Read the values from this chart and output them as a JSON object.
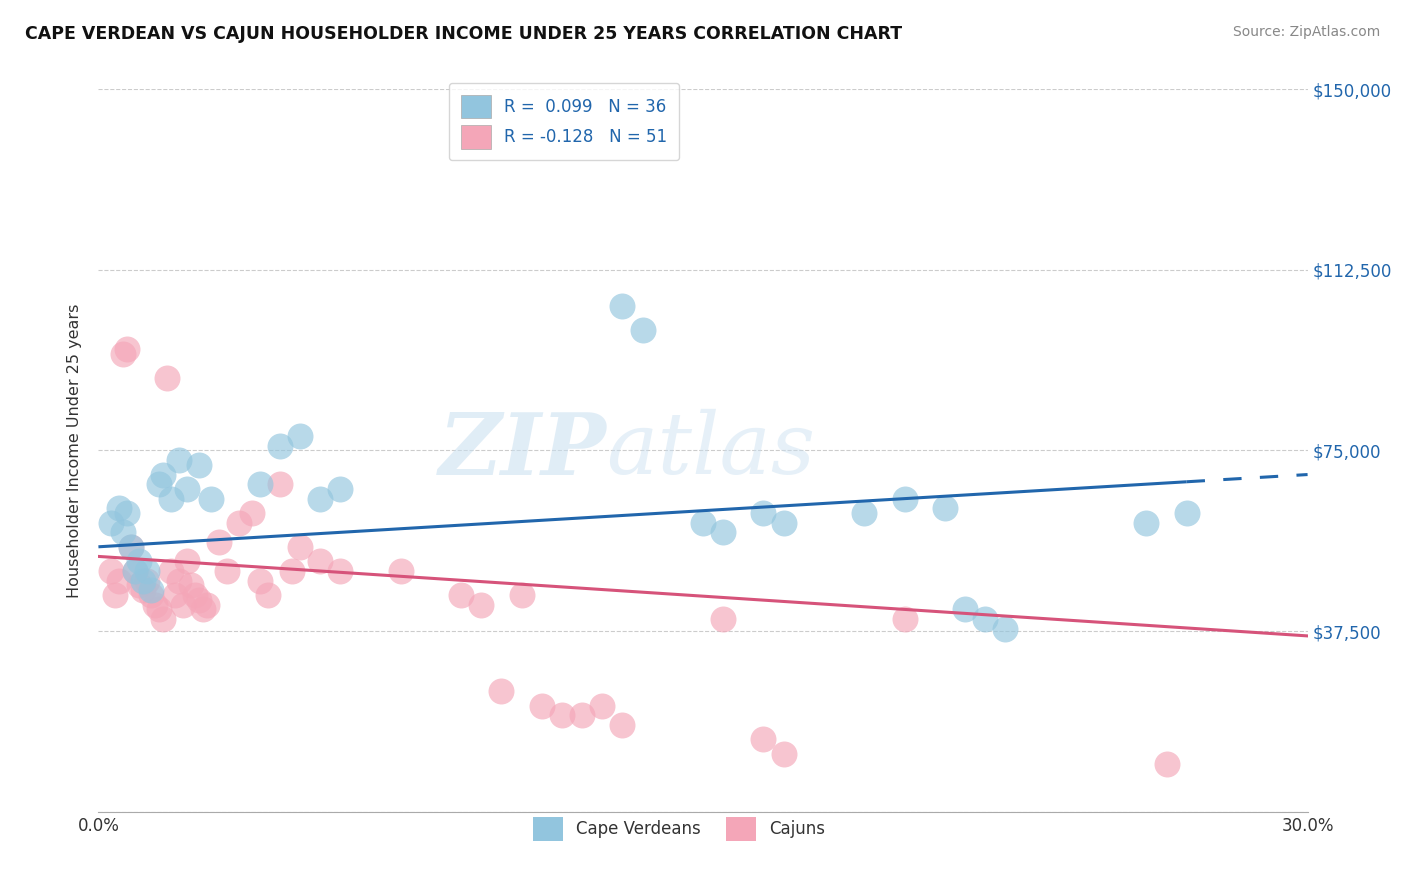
{
  "title": "CAPE VERDEAN VS CAJUN HOUSEHOLDER INCOME UNDER 25 YEARS CORRELATION CHART",
  "source": "Source: ZipAtlas.com",
  "ylabel": "Householder Income Under 25 years",
  "xlim": [
    0.0,
    0.3
  ],
  "ylim": [
    0,
    150000
  ],
  "yticks": [
    0,
    37500,
    75000,
    112500,
    150000
  ],
  "ytick_labels": [
    "",
    "$37,500",
    "$75,000",
    "$112,500",
    "$150,000"
  ],
  "xticks": [
    0.0,
    0.05,
    0.1,
    0.15,
    0.2,
    0.25,
    0.3
  ],
  "xtick_labels": [
    "0.0%",
    "",
    "",
    "",
    "",
    "",
    "30.0%"
  ],
  "color_blue": "#92c5de",
  "color_pink": "#f4a6b8",
  "color_blue_line": "#2166ac",
  "color_pink_line": "#d6537a",
  "watermark_zip": "ZIP",
  "watermark_atlas": "atlas",
  "cv_r": " 0.099",
  "cv_n": "36",
  "cj_r": "-0.128",
  "cj_n": "51",
  "cape_verdean_x": [
    0.003,
    0.005,
    0.006,
    0.007,
    0.008,
    0.009,
    0.01,
    0.011,
    0.012,
    0.013,
    0.015,
    0.016,
    0.018,
    0.02,
    0.022,
    0.025,
    0.028,
    0.04,
    0.045,
    0.05,
    0.055,
    0.06,
    0.13,
    0.135,
    0.15,
    0.155,
    0.165,
    0.17,
    0.19,
    0.2,
    0.21,
    0.215,
    0.22,
    0.225,
    0.26,
    0.27
  ],
  "cape_verdean_y": [
    60000,
    63000,
    58000,
    62000,
    55000,
    50000,
    52000,
    48000,
    50000,
    46000,
    68000,
    70000,
    65000,
    73000,
    67000,
    72000,
    65000,
    68000,
    76000,
    78000,
    65000,
    67000,
    105000,
    100000,
    60000,
    58000,
    62000,
    60000,
    62000,
    65000,
    63000,
    42000,
    40000,
    38000,
    60000,
    62000
  ],
  "cajun_x": [
    0.003,
    0.004,
    0.005,
    0.006,
    0.007,
    0.008,
    0.009,
    0.01,
    0.011,
    0.012,
    0.013,
    0.014,
    0.015,
    0.016,
    0.017,
    0.018,
    0.019,
    0.02,
    0.021,
    0.022,
    0.023,
    0.024,
    0.025,
    0.026,
    0.027,
    0.03,
    0.032,
    0.035,
    0.038,
    0.04,
    0.042,
    0.045,
    0.048,
    0.05,
    0.055,
    0.06,
    0.075,
    0.09,
    0.095,
    0.1,
    0.105,
    0.11,
    0.115,
    0.12,
    0.125,
    0.13,
    0.155,
    0.165,
    0.17,
    0.2,
    0.265
  ],
  "cajun_y": [
    50000,
    45000,
    48000,
    95000,
    96000,
    55000,
    50000,
    47000,
    46000,
    48000,
    45000,
    43000,
    42000,
    40000,
    90000,
    50000,
    45000,
    48000,
    43000,
    52000,
    47000,
    45000,
    44000,
    42000,
    43000,
    56000,
    50000,
    60000,
    62000,
    48000,
    45000,
    68000,
    50000,
    55000,
    52000,
    50000,
    50000,
    45000,
    43000,
    25000,
    45000,
    22000,
    20000,
    20000,
    22000,
    18000,
    40000,
    15000,
    12000,
    40000,
    10000
  ]
}
